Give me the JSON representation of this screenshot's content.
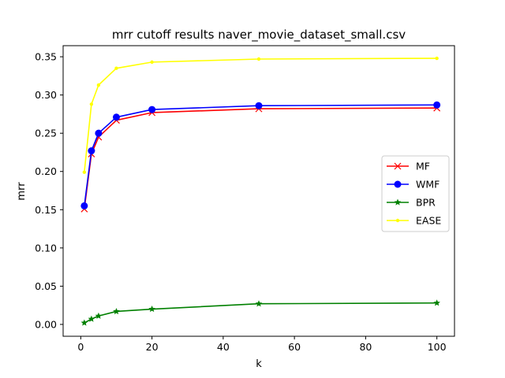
{
  "chart_data": {
    "type": "line",
    "title": "mrr cutoff results naver_movie_dataset_small.csv",
    "xlabel": "k",
    "ylabel": "mrr",
    "xlim": [
      -4.95,
      104.95
    ],
    "ylim": [
      -0.0155,
      0.3645
    ],
    "xticks": [
      0,
      20,
      40,
      60,
      80,
      100
    ],
    "yticks": [
      0.0,
      0.05,
      0.1,
      0.15,
      0.2,
      0.25,
      0.3,
      0.35
    ],
    "ytick_labels": [
      "0.00",
      "0.05",
      "0.10",
      "0.15",
      "0.20",
      "0.25",
      "0.30",
      "0.35"
    ],
    "grid": false,
    "legend_placement": "center-right",
    "x": [
      1,
      3,
      5,
      10,
      20,
      50,
      100
    ],
    "series": [
      {
        "name": "MF",
        "color": "#ff0000",
        "marker": "x",
        "values": [
          0.151,
          0.223,
          0.245,
          0.267,
          0.277,
          0.282,
          0.283
        ]
      },
      {
        "name": "WMF",
        "color": "#0000ff",
        "marker": "circle",
        "values": [
          0.155,
          0.227,
          0.25,
          0.271,
          0.281,
          0.286,
          0.287
        ]
      },
      {
        "name": "BPR",
        "color": "#008000",
        "marker": "star",
        "values": [
          0.002,
          0.007,
          0.011,
          0.017,
          0.02,
          0.027,
          0.028
        ]
      },
      {
        "name": "EASE",
        "color": "#ffff00",
        "marker": "point",
        "values": [
          0.199,
          0.288,
          0.313,
          0.335,
          0.343,
          0.347,
          0.348
        ]
      }
    ]
  }
}
